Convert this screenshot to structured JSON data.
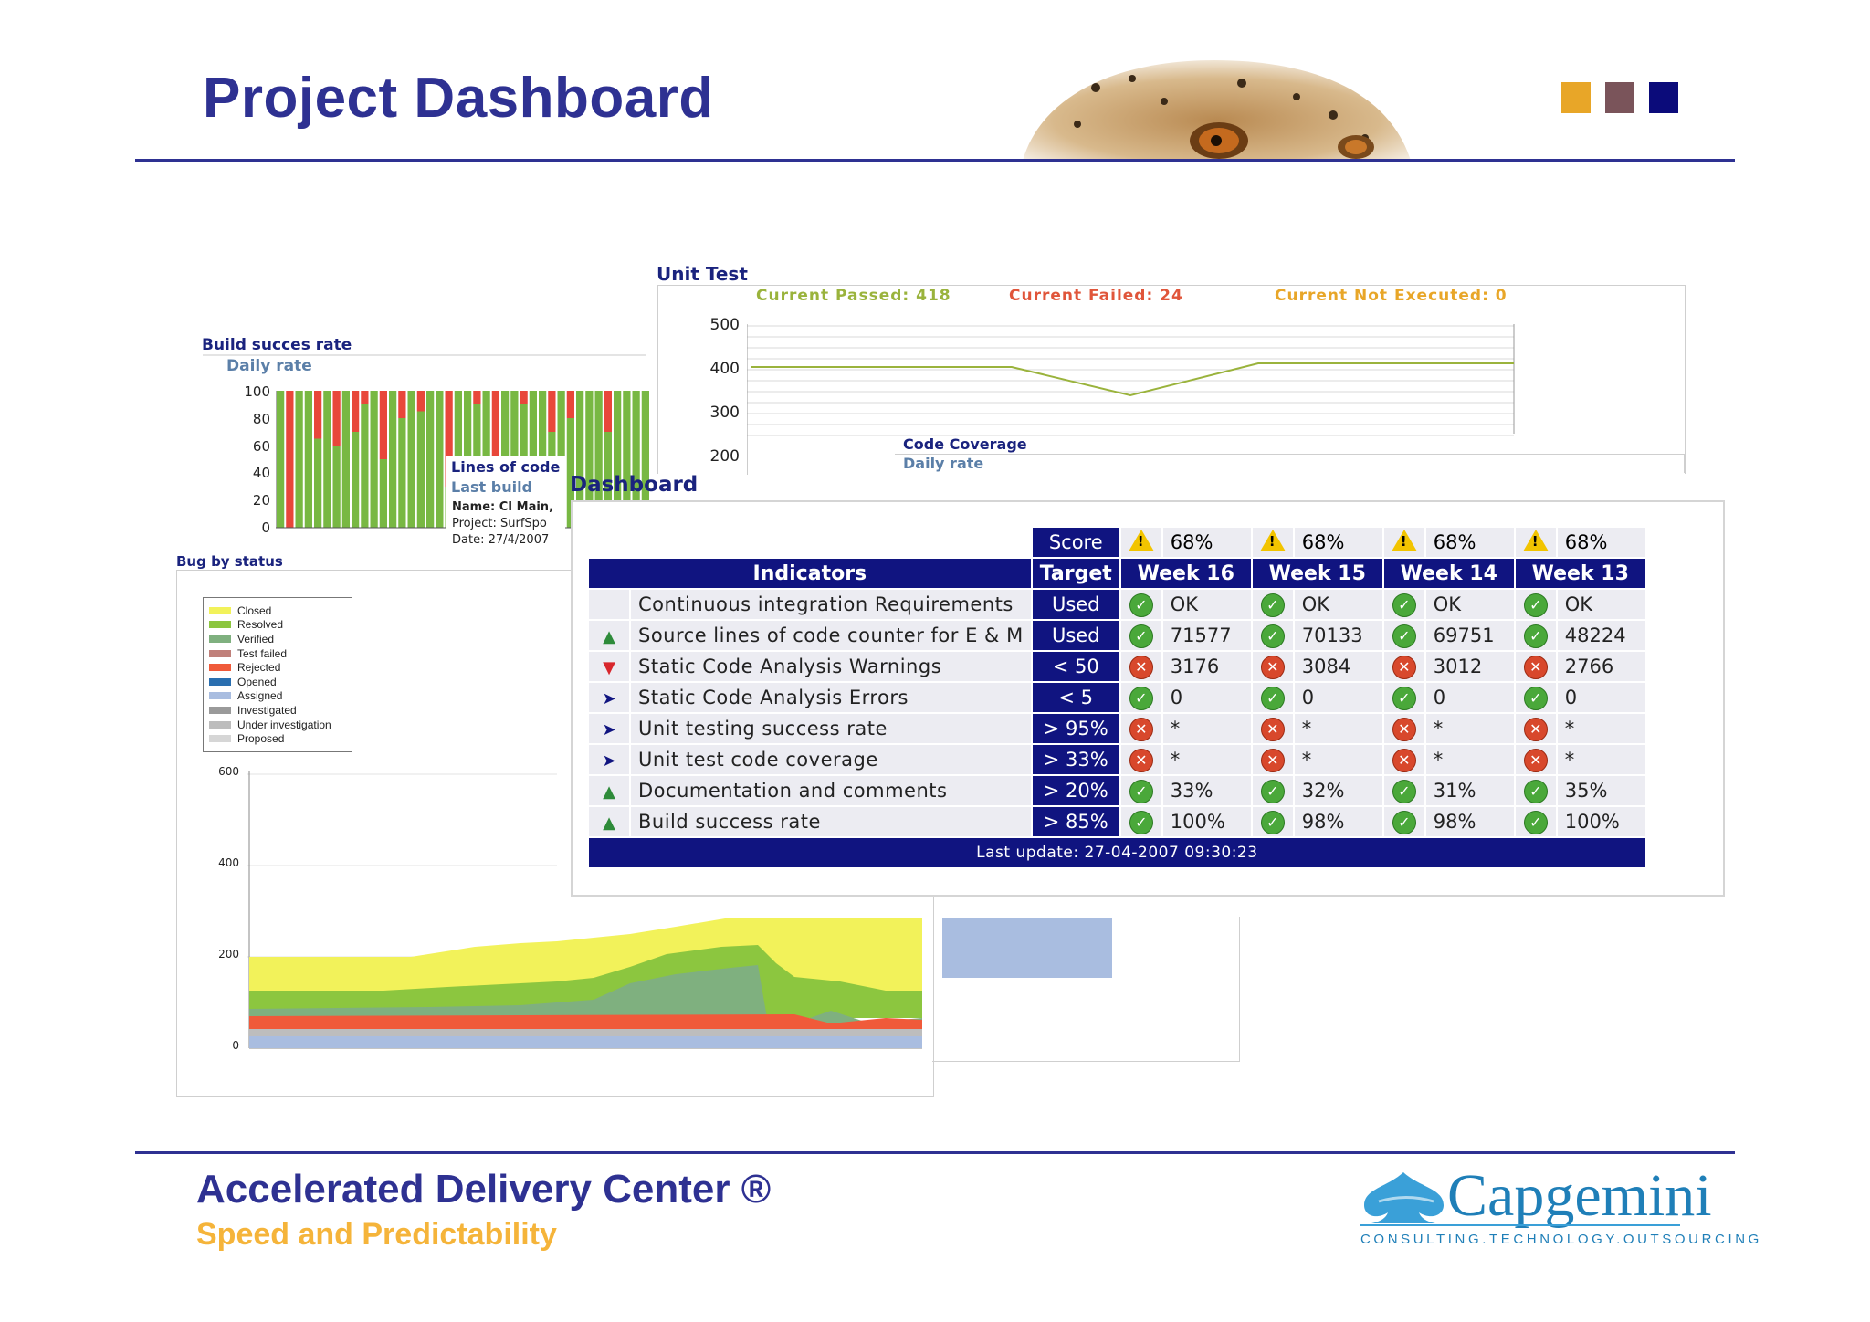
{
  "slide": {
    "title": "Project Dashboard",
    "brand_colors": [
      "#e8a628",
      "#7a545a",
      "#0b0b7a"
    ]
  },
  "build_success": {
    "title": "Build succes rate",
    "subtitle": "Daily rate",
    "y_ticks": [
      "100",
      "80",
      "60",
      "40",
      "20",
      "0"
    ]
  },
  "lines_of_code": {
    "title": "Lines of code",
    "subtitle": "Last build",
    "name": "Name: CI Main,",
    "project": "Project: SurfSpo",
    "date": "Date: 27/4/2007"
  },
  "bug_status": {
    "title": "Bug by status",
    "legend": [
      {
        "label": "Closed",
        "color": "#f2f25a"
      },
      {
        "label": "Resolved",
        "color": "#8cc63f"
      },
      {
        "label": "Verified",
        "color": "#7fb07f"
      },
      {
        "label": "Test failed",
        "color": "#c0807a"
      },
      {
        "label": "Rejected",
        "color": "#f05a3a"
      },
      {
        "label": "Opened",
        "color": "#2a6fb0"
      },
      {
        "label": "Assigned",
        "color": "#a9bde0"
      },
      {
        "label": "Investigated",
        "color": "#9a9a9a"
      },
      {
        "label": "Under investigation",
        "color": "#bdbdbd"
      },
      {
        "label": "Proposed",
        "color": "#d6d6d6"
      }
    ],
    "y_ticks": [
      "600",
      "400",
      "200",
      "0"
    ]
  },
  "unit_test": {
    "title": "Unit Test",
    "passed": "Current Passed: 418",
    "failed": "Current Failed: 24",
    "not_executed": "Current Not Executed: 0",
    "y_ticks": [
      "500",
      "400",
      "300",
      "200"
    ]
  },
  "code_coverage": {
    "title": "Code Coverage",
    "subtitle": "Daily rate"
  },
  "dashboard": {
    "title": "Dashboard",
    "score_label": "Score",
    "scores": [
      "68%",
      "68%",
      "68%",
      "68%"
    ],
    "headers": {
      "indicators": "Indicators",
      "target": "Target",
      "weeks": [
        "Week 16",
        "Week 15",
        "Week 14",
        "Week 13"
      ]
    },
    "rows": [
      {
        "trend": "none",
        "indicator": "Continuous integration Requirements",
        "target": "Used",
        "status": [
          "ok",
          "ok",
          "ok",
          "ok"
        ],
        "values": [
          "OK",
          "OK",
          "OK",
          "OK"
        ]
      },
      {
        "trend": "up",
        "indicator": "Source lines of code counter for E & M",
        "target": "Used",
        "status": [
          "ok",
          "ok",
          "ok",
          "ok"
        ],
        "values": [
          "71577",
          "70133",
          "69751",
          "48224"
        ]
      },
      {
        "trend": "down",
        "indicator": "Static Code Analysis Warnings",
        "target": "< 50",
        "status": [
          "ko",
          "ko",
          "ko",
          "ko"
        ],
        "values": [
          "3176",
          "3084",
          "3012",
          "2766"
        ]
      },
      {
        "trend": "right",
        "indicator": "Static Code Analysis Errors",
        "target": "< 5",
        "status": [
          "ok",
          "ok",
          "ok",
          "ok"
        ],
        "values": [
          "0",
          "0",
          "0",
          "0"
        ]
      },
      {
        "trend": "right",
        "indicator": "Unit testing success rate",
        "target": "> 95%",
        "status": [
          "ko",
          "ko",
          "ko",
          "ko"
        ],
        "values": [
          "*",
          "*",
          "*",
          "*"
        ]
      },
      {
        "trend": "right",
        "indicator": "Unit test code coverage",
        "target": "> 33%",
        "status": [
          "ko",
          "ko",
          "ko",
          "ko"
        ],
        "values": [
          "*",
          "*",
          "*",
          "*"
        ]
      },
      {
        "trend": "up",
        "indicator": "Documentation and comments",
        "target": "> 20%",
        "status": [
          "ok",
          "ok",
          "ok",
          "ok"
        ],
        "values": [
          "33%",
          "32%",
          "31%",
          "35%"
        ]
      },
      {
        "trend": "up",
        "indicator": "Build success rate",
        "target": "> 85%",
        "status": [
          "ok",
          "ok",
          "ok",
          "ok"
        ],
        "values": [
          "100%",
          "98%",
          "98%",
          "100%"
        ]
      }
    ],
    "last_update": "Last update: 27-04-2007 09:30:23"
  },
  "footer": {
    "title": "Accelerated Delivery Center ®",
    "subtitle": "Speed and Predictability",
    "logo": "Capgemini",
    "tagline": "CONSULTING.TECHNOLOGY.OUTSOURCING"
  }
}
